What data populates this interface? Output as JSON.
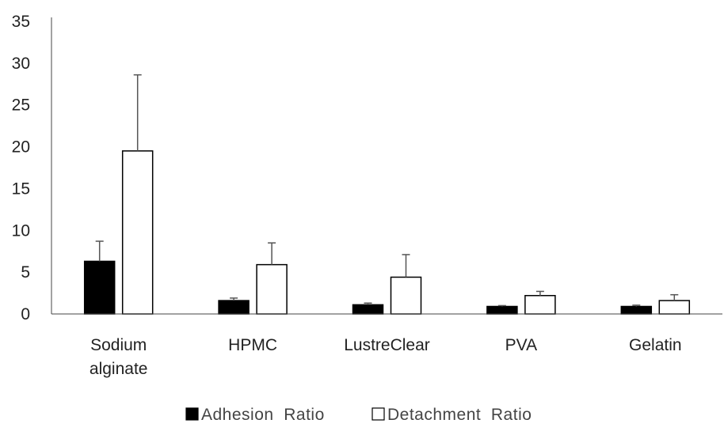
{
  "chart_data": {
    "type": "bar",
    "categories": [
      "Sodium\nalginate",
      "HPMC",
      "LustreClear",
      "PVA",
      "Gelatin"
    ],
    "series": [
      {
        "name": "Adhesion  Ratio",
        "values": [
          6.3,
          1.6,
          1.1,
          0.9,
          0.9
        ],
        "errors": [
          2.4,
          0.3,
          0.2,
          0.1,
          0.15
        ],
        "fill": "#000000"
      },
      {
        "name": "Detachment  Ratio",
        "values": [
          19.5,
          5.9,
          4.4,
          2.2,
          1.6
        ],
        "errors": [
          9.1,
          2.6,
          2.7,
          0.5,
          0.7
        ],
        "fill": "#ffffff"
      }
    ],
    "ylim": [
      0,
      35
    ],
    "yticks": [
      0,
      5,
      10,
      15,
      20,
      25,
      30,
      35
    ],
    "grid": false,
    "legend_position": "bottom",
    "title": "",
    "xlabel": "",
    "ylabel": ""
  },
  "colors": {
    "axis": "#444444",
    "bar_stroke": "#000000",
    "error_bar": "#555555"
  }
}
